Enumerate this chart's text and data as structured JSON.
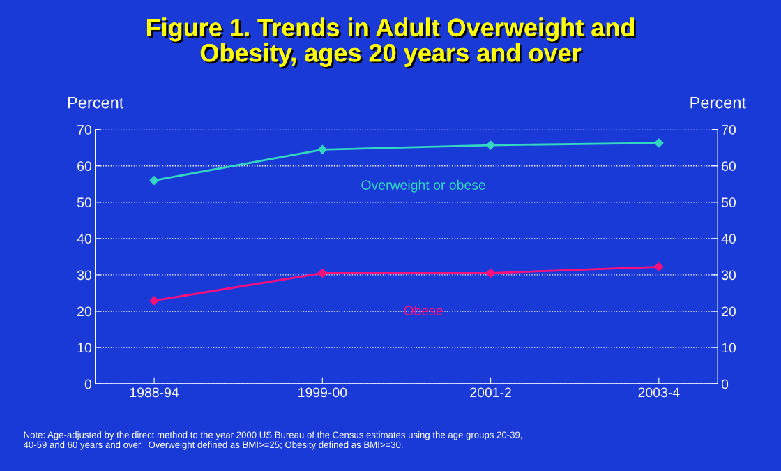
{
  "chart_data": {
    "type": "line",
    "title": "Figure 1. Trends in Adult Overweight and\nObesity, ages 20 years and over",
    "ylabel": "Percent",
    "y2label": "Percent",
    "categories": [
      "1988-94",
      "1999-00",
      "2001-2",
      "2003-4"
    ],
    "series": [
      {
        "name": "Overweight or obese",
        "color": "#33d6c0",
        "values": [
          56.0,
          64.5,
          65.7,
          66.3
        ]
      },
      {
        "name": "Obese",
        "color": "#ff0f7b",
        "values": [
          22.9,
          30.5,
          30.5,
          32.2
        ]
      }
    ],
    "ylim": [
      0,
      70
    ],
    "yticks": [
      0,
      10,
      20,
      30,
      40,
      50,
      60,
      70
    ],
    "y2lim": [
      0,
      70
    ],
    "y2ticks": [
      0,
      10,
      20,
      30,
      40,
      50,
      60,
      70
    ],
    "grid": "y",
    "marker": "diamond",
    "line_style": "solid",
    "legend": false,
    "annotations": [
      "Note: Age-adjusted by the direct method to the year 2000 US Bureau of the Census estimates using the age groups 20-39,\n40-59 and 60 years and over.  Overweight defined as BMI>=25; Obesity defined as BMI>=30."
    ]
  }
}
